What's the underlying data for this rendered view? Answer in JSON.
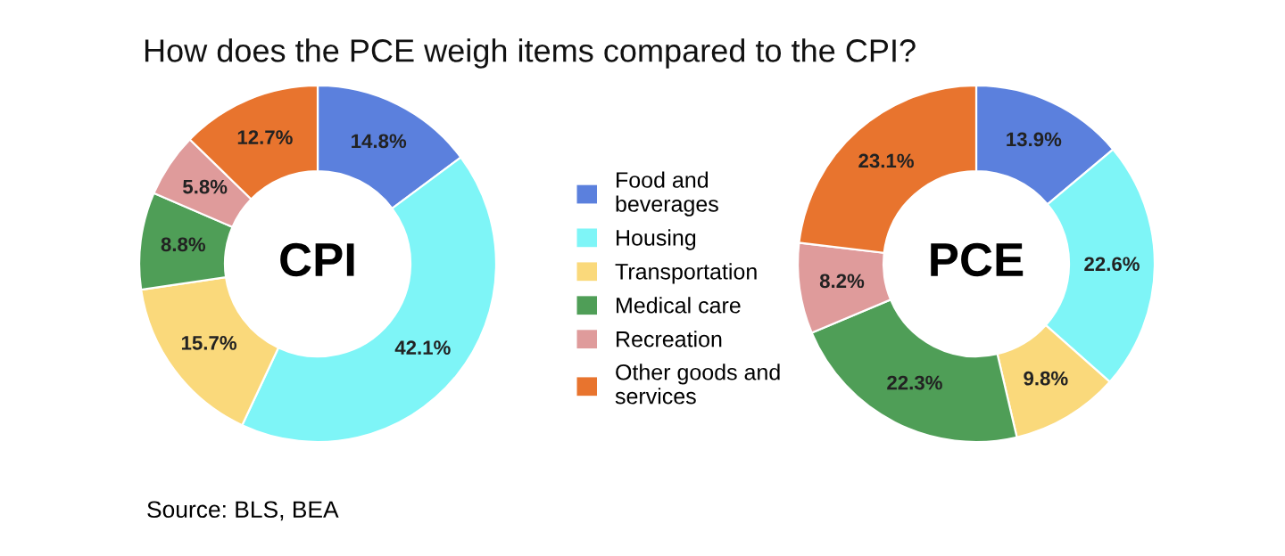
{
  "chart_data": [
    {
      "type": "donut",
      "title": "How does the PCE weigh items compared to the CPI?",
      "subtitle": "CPI",
      "annotations": [
        "Source: BLS, BEA"
      ],
      "legend": "right",
      "categories": [
        "Food and beverages",
        "Housing",
        "Transportation",
        "Medical care",
        "Recreation",
        "Other goods and services"
      ],
      "values": [
        14.8,
        42.1,
        15.7,
        8.8,
        5.8,
        12.7
      ],
      "value_labels": [
        "14.8%",
        "42.1%",
        "15.7%",
        "8.8%",
        "5.8%",
        "12.7%"
      ],
      "colors": [
        "#5b80dd",
        "#7ef5f7",
        "#fad97b",
        "#4f9e57",
        "#df9b9b",
        "#e8742e"
      ]
    },
    {
      "type": "donut",
      "subtitle": "PCE",
      "categories": [
        null,
        null,
        null,
        null,
        null,
        null
      ],
      "values": [
        13.9,
        22.6,
        9.8,
        22.3,
        8.2,
        23.1
      ],
      "value_labels": [
        "13.9%",
        "22.6%",
        "9.8%",
        "22.3%",
        "8.2%",
        "23.1%"
      ],
      "colors": [
        "#5b80dd",
        "#7ef5f7",
        "#fad97b",
        "#4f9e57",
        "#df9b9b",
        "#e8742e"
      ]
    }
  ]
}
